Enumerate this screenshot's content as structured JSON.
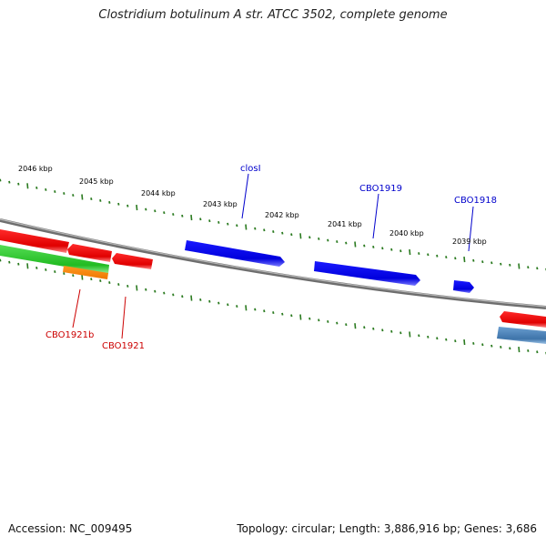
{
  "title": "Clostridium botulinum A str. ATCC 3502, complete genome",
  "footer": {
    "accession": "Accession: NC_009495",
    "summary": "Topology: circular; Length: 3,886,916 bp; Genes: 3,686"
  },
  "colors": {
    "tick": "#2a7a1f",
    "forward_gene": "#0000ee",
    "reverse_gene": "#ee1111",
    "green_feature": "#33cc33",
    "orange_feature": "#ff8800",
    "steel_feature": "#4a82b8",
    "backbone": "#808080",
    "label_blue": "#0000cc",
    "label_red": "#cc0000"
  },
  "kbp_labels": [
    "2046 kbp",
    "2045 kbp",
    "2044 kbp",
    "2043 kbp",
    "2042 kbp",
    "2041 kbp",
    "2040 kbp",
    "2039 kbp"
  ],
  "gene_labels_top": [
    "closI",
    "CBO1919",
    "CBO1918"
  ],
  "gene_labels_bottom": [
    "CBO1921b",
    "CBO1921"
  ]
}
